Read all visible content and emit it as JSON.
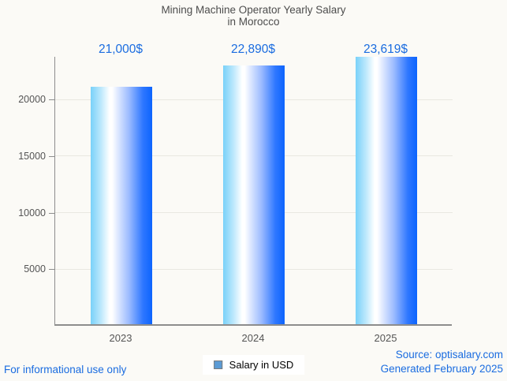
{
  "title": {
    "line1": "Mining Machine Operator Yearly Salary",
    "line2": "in Morocco"
  },
  "chart_data": {
    "type": "bar",
    "title": "Mining Machine Operator Yearly Salary in Morocco",
    "categories": [
      "2023",
      "2024",
      "2025"
    ],
    "series": [
      {
        "name": "Salary in USD",
        "values": [
          21000,
          22890,
          23619
        ]
      }
    ],
    "bar_labels": [
      "21,000$",
      "22,890$",
      "23,619$"
    ],
    "xlabel": "",
    "ylabel": "",
    "ylim": [
      0,
      23772
    ],
    "y_ticks": [
      5000,
      10000,
      15000,
      20000
    ],
    "grid": true,
    "legend_position": "bottom-center"
  },
  "legend": {
    "label": "Salary in USD",
    "marker_color": "#5b9bd5"
  },
  "footer": {
    "disclaimer": "For informational use only",
    "source": "Source: optisalary.com",
    "generated": "Generated February 2025"
  },
  "colors": {
    "background": "#fbfaf6",
    "title_text": "#4d4d4d",
    "axis_text": "#555555",
    "axis_line": "#8d8d8d",
    "gridline": "#e9e8e1",
    "blue_text": "#1a6ce0",
    "bar_gradient_left": "#79d1f9",
    "bar_gradient_mid": "#ffffff",
    "bar_gradient_right": "#0c64fe",
    "legend_marker": "#5b9bd5"
  }
}
